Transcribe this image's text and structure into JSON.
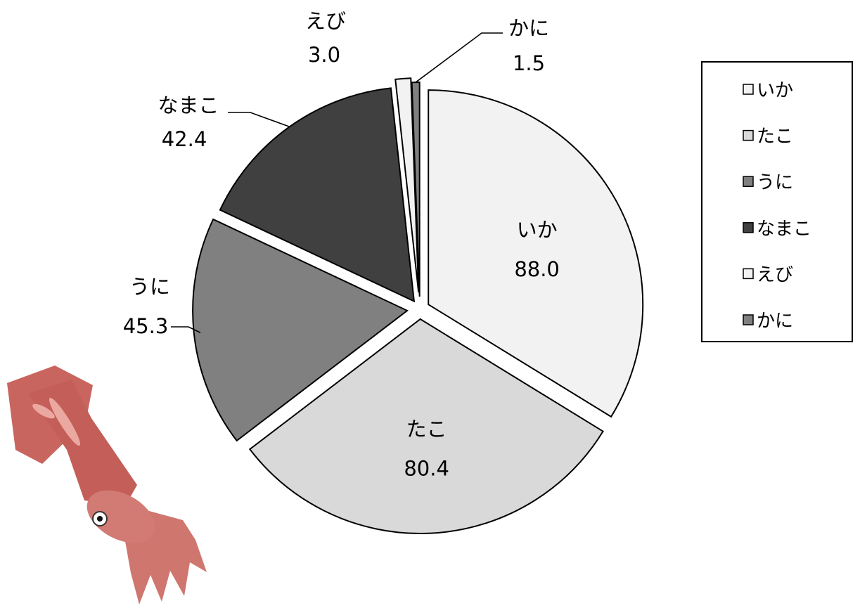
{
  "chart_data": {
    "type": "pie",
    "categories": [
      "いか",
      "たこ",
      "うに",
      "なまこ",
      "えび",
      "かに"
    ],
    "values": [
      88.0,
      80.4,
      45.3,
      42.4,
      3.0,
      1.5
    ],
    "value_labels": [
      "88.0",
      "80.4",
      "45.3",
      "42.4",
      "3.0",
      "1.5"
    ],
    "colors": [
      "#f2f2f2",
      "#d9d9d9",
      "#808080",
      "#404040",
      "#f2f2f2",
      "#808080"
    ],
    "exploded": true,
    "legend": {
      "position": "right",
      "entries": [
        "いか",
        "たこ",
        "うに",
        "なまこ",
        "えび",
        "かに"
      ]
    }
  },
  "decoration": {
    "illustration": "squid-illustration"
  }
}
